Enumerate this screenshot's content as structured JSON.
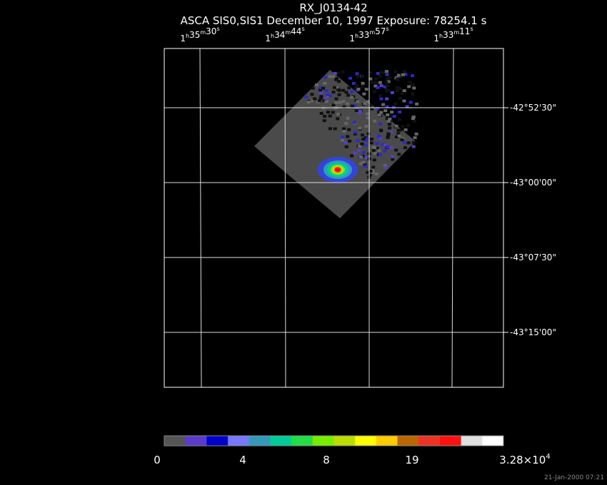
{
  "header": {
    "title": "RX_J0134-42",
    "subtitle": "ASCA SIS0,SIS1 December 10, 1997 Exposure: 78254.1 s"
  },
  "ra_units": [
    "h",
    "m",
    "s"
  ],
  "ra_labels": [
    [
      "1",
      "35",
      "30"
    ],
    [
      "1",
      "34",
      "44"
    ],
    [
      "1",
      "33",
      "57"
    ],
    [
      "1",
      "33",
      "11"
    ]
  ],
  "dec_labels": [
    "-42°52'30\"",
    "-43°00'00\"",
    "-43°07'30\"",
    "-43°15'00\""
  ],
  "colorbar": {
    "colors": [
      "#555555",
      "#5a3cc8",
      "#0000cc",
      "#7777ff",
      "#3399bb",
      "#00cc99",
      "#22dd44",
      "#77ee00",
      "#bbdd00",
      "#ffff00",
      "#ffcc00",
      "#bb6600",
      "#ee3322",
      "#ff1111",
      "#e0e0e0",
      "#ffffff"
    ],
    "labels": [
      "0",
      "4",
      "8",
      "19"
    ],
    "max_label": {
      "mantissa": "3.28×10",
      "exponent": "4"
    }
  },
  "footer": {
    "timestamp": "21-Jan-2000 07:21"
  }
}
